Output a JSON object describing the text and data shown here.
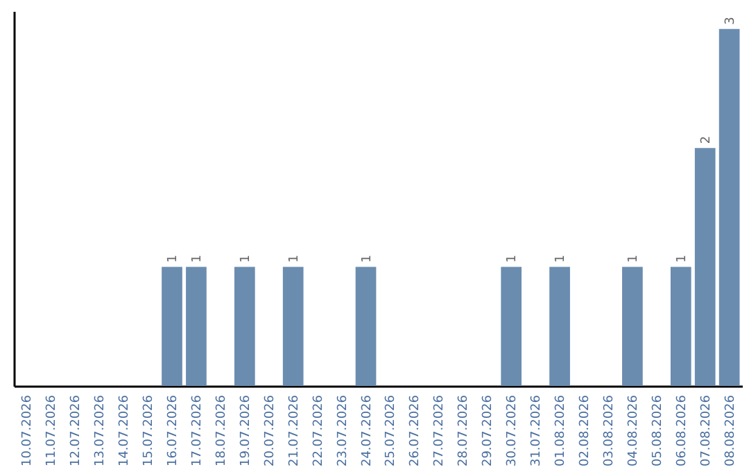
{
  "chart_data": {
    "type": "bar",
    "categories": [
      "10.07.2026",
      "11.07.2026",
      "12.07.2026",
      "13.07.2026",
      "14.07.2026",
      "15.07.2026",
      "16.07.2026",
      "17.07.2026",
      "18.07.2026",
      "19.07.2026",
      "20.07.2026",
      "21.07.2026",
      "22.07.2026",
      "23.07.2026",
      "24.07.2026",
      "25.07.2026",
      "26.07.2026",
      "27.07.2026",
      "28.07.2026",
      "29.07.2026",
      "30.07.2026",
      "31.07.2026",
      "01.08.2026",
      "02.08.2026",
      "03.08.2026",
      "04.08.2026",
      "05.08.2026",
      "06.08.2026",
      "07.08.2026",
      "08.08.2026"
    ],
    "values": [
      0,
      0,
      0,
      0,
      0,
      0,
      1,
      1,
      0,
      1,
      0,
      1,
      0,
      0,
      1,
      0,
      0,
      0,
      0,
      0,
      1,
      0,
      1,
      0,
      0,
      1,
      0,
      1,
      2,
      3
    ],
    "value_labels": [
      null,
      null,
      null,
      null,
      null,
      null,
      "1",
      "1",
      null,
      "1",
      null,
      "1",
      null,
      null,
      "1",
      null,
      null,
      null,
      null,
      null,
      "1",
      null,
      "1",
      null,
      null,
      "1",
      null,
      "1",
      "2",
      "3"
    ],
    "color": "#6a8caf",
    "ylim": [
      0,
      3.15
    ],
    "tick_labels": "x",
    "grid": false
  }
}
